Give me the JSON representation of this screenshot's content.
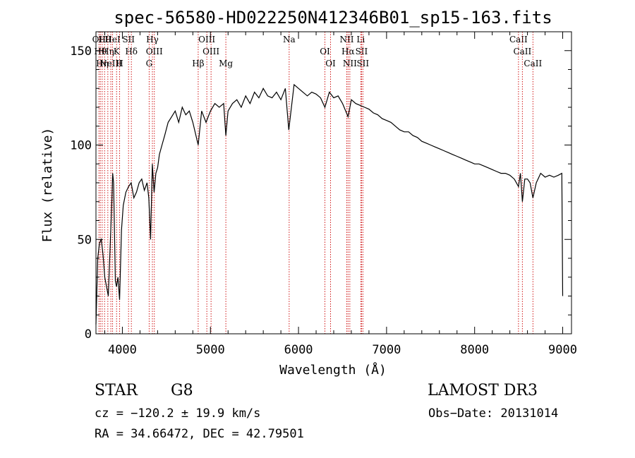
{
  "chart_data": {
    "type": "line",
    "title": "spec-56580-HD022250N412346B01_sp15-163.fits",
    "xlabel": "Wavelength (Å)",
    "ylabel": "Flux (relative)",
    "xlim": [
      3700,
      9100
    ],
    "ylim": [
      0,
      160
    ],
    "xticks": [
      4000,
      5000,
      6000,
      7000,
      8000,
      9000
    ],
    "yticks": [
      0,
      50,
      100,
      150
    ],
    "grid": false,
    "series": [
      {
        "x": [
          3700,
          3720,
          3740,
          3760,
          3780,
          3800,
          3820,
          3840,
          3860,
          3880,
          3890,
          3900,
          3920,
          3933,
          3950,
          3968,
          3990,
          4010,
          4040,
          4070,
          4100,
          4130,
          4160,
          4190,
          4220,
          4250,
          4280,
          4300,
          4320,
          4340,
          4360,
          4380,
          4400,
          4420,
          4450,
          4480,
          4520,
          4560,
          4600,
          4640,
          4680,
          4720,
          4760,
          4800,
          4861,
          4900,
          4950,
          5000,
          5050,
          5100,
          5150,
          5175,
          5200,
          5250,
          5300,
          5350,
          5400,
          5450,
          5500,
          5550,
          5600,
          5650,
          5700,
          5750,
          5800,
          5850,
          5890,
          5950,
          6000,
          6050,
          6100,
          6150,
          6200,
          6250,
          6300,
          6350,
          6400,
          6450,
          6500,
          6563,
          6600,
          6650,
          6700,
          6750,
          6800,
          6850,
          6900,
          6950,
          7000,
          7050,
          7100,
          7150,
          7200,
          7250,
          7300,
          7350,
          7400,
          7450,
          7500,
          7550,
          7600,
          7650,
          7700,
          7750,
          7800,
          7850,
          7900,
          7950,
          8000,
          8050,
          8100,
          8150,
          8200,
          8250,
          8300,
          8350,
          8400,
          8450,
          8498,
          8520,
          8542,
          8570,
          8600,
          8630,
          8662,
          8700,
          8750,
          8800,
          8850,
          8900,
          8950,
          8990,
          9000
        ],
        "values": [
          5,
          40,
          48,
          50,
          42,
          30,
          25,
          20,
          45,
          70,
          85,
          80,
          28,
          25,
          30,
          18,
          55,
          68,
          75,
          78,
          80,
          72,
          75,
          80,
          82,
          76,
          80,
          72,
          50,
          90,
          75,
          85,
          88,
          95,
          100,
          105,
          112,
          115,
          118,
          112,
          120,
          116,
          118,
          112,
          100,
          118,
          112,
          118,
          122,
          120,
          122,
          105,
          118,
          122,
          124,
          120,
          126,
          122,
          128,
          125,
          130,
          126,
          125,
          128,
          124,
          130,
          108,
          132,
          130,
          128,
          126,
          128,
          127,
          125,
          120,
          128,
          125,
          126,
          122,
          115,
          124,
          122,
          121,
          120,
          119,
          117,
          116,
          114,
          113,
          112,
          110,
          108,
          107,
          107,
          105,
          104,
          102,
          101,
          100,
          99,
          98,
          97,
          96,
          95,
          94,
          93,
          92,
          91,
          90,
          90,
          89,
          88,
          87,
          86,
          85,
          85,
          84,
          82,
          78,
          85,
          70,
          82,
          82,
          80,
          72,
          80,
          85,
          83,
          84,
          83,
          84,
          85,
          20
        ]
      }
    ],
    "line_labels": [
      {
        "wavelength": 3734,
        "label": "OII"
      },
      {
        "wavelength": 3750,
        "label": "Hθ"
      },
      {
        "wavelength": 3771,
        "label": "Hη"
      },
      {
        "wavelength": 3798,
        "label": "Hθ"
      },
      {
        "wavelength": 3835,
        "label": "Hη"
      },
      {
        "wavelength": 3869,
        "label": "NeIII"
      },
      {
        "wavelength": 3889,
        "label": "HeI"
      },
      {
        "wavelength": 3934,
        "label": "K"
      },
      {
        "wavelength": 3969,
        "label": "H"
      },
      {
        "wavelength": 4070,
        "label": "SII"
      },
      {
        "wavelength": 4102,
        "label": "Hδ"
      },
      {
        "wavelength": 4304,
        "label": "G"
      },
      {
        "wavelength": 4341,
        "label": "Hγ"
      },
      {
        "wavelength": 4363,
        "label": "OIII"
      },
      {
        "wavelength": 4861,
        "label": "Hβ"
      },
      {
        "wavelength": 4959,
        "label": "OIII"
      },
      {
        "wavelength": 5007,
        "label": "OIII"
      },
      {
        "wavelength": 5175,
        "label": "Mg"
      },
      {
        "wavelength": 5894,
        "label": "Na"
      },
      {
        "wavelength": 6300,
        "label": "OI"
      },
      {
        "wavelength": 6364,
        "label": "OI"
      },
      {
        "wavelength": 6548,
        "label": "NII"
      },
      {
        "wavelength": 6563,
        "label": "Hα"
      },
      {
        "wavelength": 6583,
        "label": "NII"
      },
      {
        "wavelength": 6707,
        "label": "Li"
      },
      {
        "wavelength": 6716,
        "label": "SII"
      },
      {
        "wavelength": 6731,
        "label": "SII"
      },
      {
        "wavelength": 8498,
        "label": "CaII"
      },
      {
        "wavelength": 8542,
        "label": "CaII"
      },
      {
        "wavelength": 8662,
        "label": "CaII"
      }
    ]
  },
  "info": {
    "class": "STAR",
    "subclass": "G8",
    "survey": "LAMOST DR3",
    "cz": "cz = −120.2 ± 19.9 km/s",
    "obs_date": "Obs−Date: 20131014",
    "coords": "RA =  34.66472, DEC =  42.79501"
  },
  "colors": {
    "spectrum": "#000000",
    "line_markers": "#cc0000",
    "text": "#000000"
  }
}
